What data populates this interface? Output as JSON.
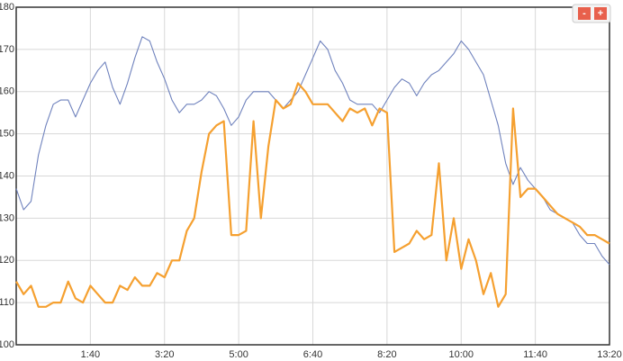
{
  "chart_data": {
    "type": "line",
    "x": [
      0,
      10,
      20,
      30,
      40,
      50,
      60,
      70,
      80,
      90,
      100,
      110,
      120,
      130,
      140,
      150,
      160,
      170,
      180,
      190,
      200,
      210,
      220,
      230,
      240,
      250,
      260,
      270,
      280,
      290,
      300,
      310,
      320,
      330,
      340,
      350,
      360,
      370,
      380,
      390,
      400,
      410,
      420,
      430,
      440,
      450,
      460,
      470,
      480,
      490,
      500,
      510,
      520,
      530,
      540,
      550,
      560,
      570,
      580,
      590,
      600,
      610,
      620,
      630,
      640,
      650,
      660,
      670,
      680,
      690,
      700,
      710,
      720,
      730,
      740,
      750,
      760,
      770,
      780,
      790,
      800
    ],
    "series": [
      {
        "color": "#6f82bd",
        "values": [
          137,
          132,
          134,
          145,
          152,
          157,
          158,
          158,
          154,
          158,
          162,
          165,
          167,
          161,
          157,
          162,
          168,
          173,
          172,
          167,
          163,
          158,
          155,
          157,
          157,
          158,
          160,
          159,
          156,
          152,
          154,
          158,
          160,
          160,
          160,
          158,
          156,
          158,
          160,
          164,
          168,
          172,
          170,
          165,
          162,
          158,
          157,
          157,
          157,
          155,
          158,
          161,
          163,
          162,
          159,
          162,
          164,
          165,
          167,
          169,
          172,
          170,
          167,
          164,
          158,
          152,
          143,
          138,
          142,
          139,
          137,
          135,
          132,
          131,
          130,
          129,
          126,
          124,
          124,
          121,
          119
        ]
      },
      {
        "color": "#f5a030",
        "values": [
          115,
          112,
          114,
          109,
          109,
          110,
          110,
          115,
          111,
          110,
          114,
          112,
          110,
          110,
          114,
          113,
          116,
          114,
          114,
          117,
          116,
          120,
          120,
          127,
          130,
          141,
          150,
          152,
          153,
          126,
          126,
          127,
          153,
          130,
          147,
          158,
          156,
          157,
          162,
          160,
          157,
          157,
          157,
          155,
          153,
          156,
          155,
          156,
          152,
          156,
          155,
          122,
          123,
          124,
          127,
          125,
          126,
          143,
          120,
          130,
          118,
          125,
          120,
          112,
          117,
          109,
          112,
          156,
          135,
          137,
          137,
          135,
          133,
          131,
          130,
          129,
          128,
          126,
          126,
          125,
          124
        ]
      }
    ],
    "xlim": [
      0,
      800
    ],
    "xticks": [
      {
        "value": 100,
        "label": "1:40"
      },
      {
        "value": 200,
        "label": "3:20"
      },
      {
        "value": 300,
        "label": "5:00"
      },
      {
        "value": 400,
        "label": "6:40"
      },
      {
        "value": 500,
        "label": "8:20"
      },
      {
        "value": 600,
        "label": "10:00"
      },
      {
        "value": 700,
        "label": "11:40"
      },
      {
        "value": 800,
        "label": "13:20"
      }
    ],
    "ylim": [
      100,
      180
    ],
    "yticks": [
      100,
      110,
      120,
      130,
      140,
      150,
      160,
      170,
      180
    ],
    "grid": true
  },
  "zoom": {
    "out": "-",
    "in": "+"
  }
}
